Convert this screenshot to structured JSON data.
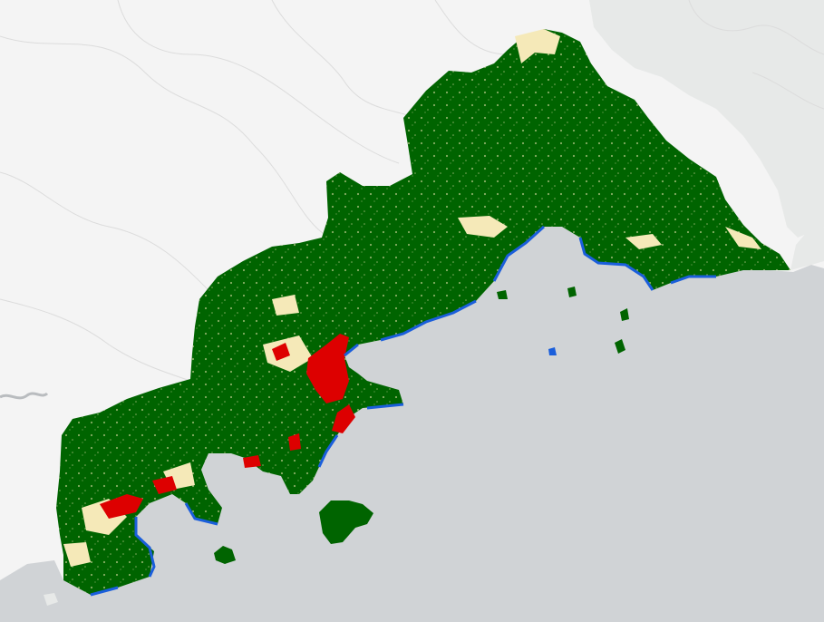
{
  "map": {
    "colors": {
      "land_background": "#f4f4f4",
      "neighbor_region": "#e7e9e8",
      "sea": "#d0d3d6",
      "forest": "#006400",
      "grassland_crop": "#f5e9b8",
      "urban": "#dd0000",
      "coast_water": "#1a5edb",
      "boundary_line": "#dcdcdc",
      "river": "#b9bcbf"
    },
    "legend_classes": [
      "forest",
      "grassland_crop",
      "urban",
      "coast_water"
    ],
    "labels": []
  }
}
